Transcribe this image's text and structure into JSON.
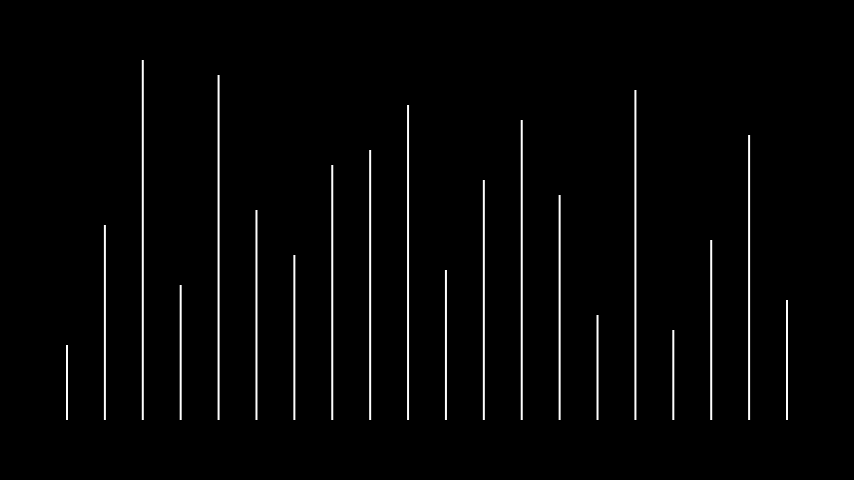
{
  "chart_data": {
    "type": "bar",
    "style": "vertical-lines",
    "background_color": "#000000",
    "bar_color": "#ffffff",
    "grid": false,
    "legend": "none",
    "ylim": [
      0,
      24
    ],
    "values": [
      5,
      13,
      24,
      9,
      23,
      14,
      11,
      17,
      18,
      21,
      10,
      16,
      20,
      15,
      7,
      22,
      6,
      12,
      19,
      8
    ]
  }
}
